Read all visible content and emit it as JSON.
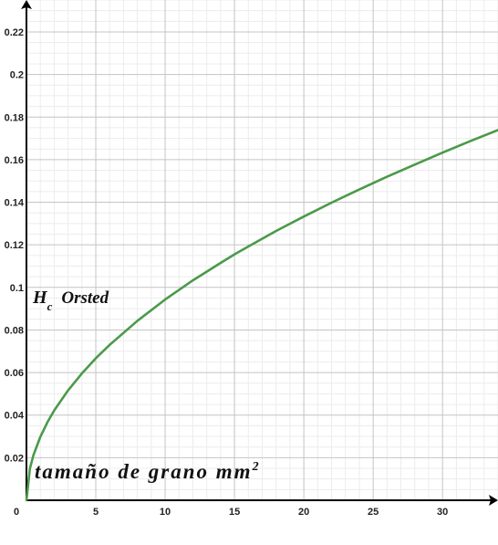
{
  "chart_data": {
    "type": "line",
    "title": "",
    "xlabel": "tamaño de grano mm",
    "xlabel_superscript": "2",
    "ylabel": "H",
    "ylabel_subscript": "c",
    "ylabel_unit": "Orsted",
    "xlim": [
      0,
      34
    ],
    "ylim": [
      0,
      0.235
    ],
    "x_ticks": [
      0,
      5,
      10,
      15,
      20,
      25,
      30
    ],
    "x_tick_labels": [
      "0",
      "5",
      "10",
      "15",
      "20",
      "25",
      "30"
    ],
    "y_ticks": [
      0.02,
      0.04,
      0.06,
      0.08,
      0.1,
      0.12,
      0.14,
      0.16,
      0.18,
      0.2,
      0.22
    ],
    "y_tick_labels": [
      "0.02",
      "0.04",
      "0.06",
      "0.08",
      "0.1",
      "0.12",
      "0.14",
      "0.16",
      "0.18",
      "0.2",
      "0.22"
    ],
    "grid": true,
    "series": [
      {
        "color": "#4a9a4a",
        "x": [
          0,
          0.25,
          0.5,
          1,
          1.5,
          2,
          3,
          4,
          5,
          6,
          8,
          10,
          12,
          14,
          15,
          16,
          18,
          20,
          22,
          24,
          25,
          26,
          28,
          30,
          32,
          34
        ],
        "y": [
          0,
          0.0149,
          0.0211,
          0.0298,
          0.0365,
          0.0422,
          0.0516,
          0.0596,
          0.0667,
          0.073,
          0.0843,
          0.0943,
          0.1033,
          0.1115,
          0.1155,
          0.1192,
          0.1265,
          0.1333,
          0.1398,
          0.146,
          0.149,
          0.152,
          0.1577,
          0.1633,
          0.1687,
          0.1739
        ]
      }
    ]
  }
}
